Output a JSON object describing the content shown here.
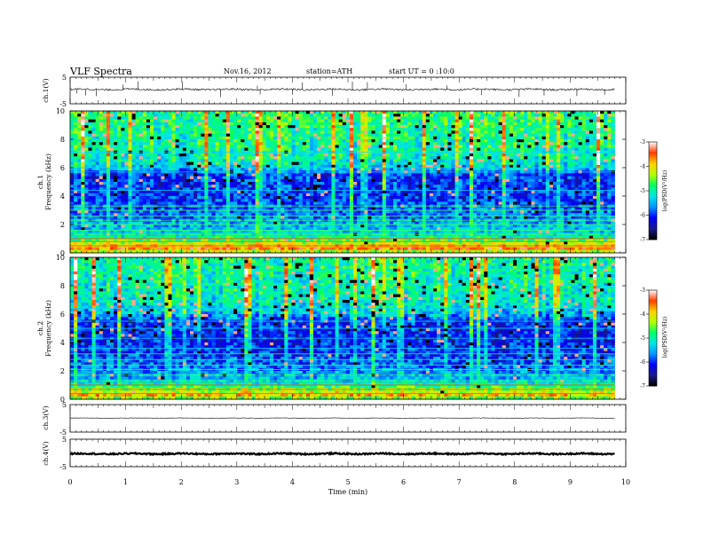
{
  "header": {
    "title": "VLF Spectra",
    "date": "Nov.16, 2012",
    "station": "station=ATH",
    "start": "start UT =  0 :10:0"
  },
  "colors": {
    "waveform": "#000000",
    "axis": "#000000",
    "colormap": [
      "#000000",
      "#1a1a8c",
      "#0000ff",
      "#0096ff",
      "#00e6e6",
      "#00ff64",
      "#b4ff00",
      "#ffd200",
      "#ff3c00",
      "#ffffff"
    ]
  },
  "chart_data": [
    {
      "type": "line",
      "name": "ch1-waveform",
      "ylabel": "ch.1(V)",
      "ylim": [
        -5,
        5
      ],
      "yticks": [
        "5",
        "-5"
      ],
      "xlim": [
        0,
        10
      ],
      "x_end": 9.8,
      "baseline": 0.4,
      "noise": 0.35,
      "spikes": [
        0.12,
        0.28,
        0.47,
        0.95,
        1.22,
        2.02,
        2.71,
        3.37,
        3.42,
        4.0,
        4.18,
        4.72,
        5.08,
        5.35,
        6.05,
        6.78,
        7.4,
        8.08,
        8.53,
        9.12,
        9.62
      ]
    },
    {
      "type": "heatmap",
      "name": "ch1-spectrogram",
      "ylabel": "ch.1",
      "ylabel2": "Frequency (kHz)",
      "ylim": [
        0,
        10
      ],
      "yticks": [
        "0",
        "2",
        "4",
        "6",
        "8",
        "10"
      ],
      "xlim": [
        0,
        10
      ],
      "x_end": 9.8,
      "colorbar": {
        "range": [
          -7,
          -3
        ],
        "ticks": [
          "-3",
          "-4",
          "-5",
          "-6",
          "-7"
        ],
        "label": "log(PSD(V²/Hz)"
      },
      "profile": [
        [
          0,
          -4.6
        ],
        [
          0.3,
          -3.6
        ],
        [
          0.6,
          -4.1
        ],
        [
          1.2,
          -5.2
        ],
        [
          2.5,
          -5.7
        ],
        [
          4,
          -6.0
        ],
        [
          5.5,
          -6.0
        ],
        [
          6,
          -5.3
        ],
        [
          7,
          -5.0
        ],
        [
          8.5,
          -4.9
        ],
        [
          10,
          -4.8
        ]
      ],
      "lines_khz": [
        0.5,
        0.8,
        1.0,
        1.3,
        1.6,
        2.0,
        2.3,
        2.6,
        3.0,
        3.3,
        4.4,
        5.7,
        6.0,
        7.1
      ]
    },
    {
      "type": "heatmap",
      "name": "ch2-spectrogram",
      "ylabel": "ch.2",
      "ylabel2": "Frequency (kHz)",
      "ylim": [
        0,
        10
      ],
      "yticks": [
        "0",
        "2",
        "4",
        "6",
        "8",
        "10"
      ],
      "xlim": [
        0,
        10
      ],
      "x_end": 9.8,
      "colorbar": {
        "range": [
          -7,
          -3
        ],
        "ticks": [
          "-3",
          "-4",
          "-5",
          "-6",
          "-7"
        ],
        "label": "log(PSD(V²/Hz)"
      },
      "profile": [
        [
          0,
          -4.8
        ],
        [
          0.3,
          -3.9
        ],
        [
          0.7,
          -4.5
        ],
        [
          1.3,
          -5.4
        ],
        [
          2.5,
          -5.8
        ],
        [
          4,
          -6.1
        ],
        [
          5.5,
          -6.0
        ],
        [
          6,
          -5.4
        ],
        [
          7,
          -5.1
        ],
        [
          8.5,
          -5.0
        ],
        [
          10,
          -4.9
        ]
      ],
      "lines_khz": [
        0.4,
        0.7,
        1.0,
        1.3,
        1.7,
        2.1,
        2.4,
        2.8,
        3.2,
        3.6,
        4.3,
        5.0,
        5.5,
        6.4
      ]
    },
    {
      "type": "line",
      "name": "ch3-waveform",
      "ylabel": "ch.3(V)",
      "ylim": [
        -5,
        5
      ],
      "yticks": [
        "5",
        "-5"
      ],
      "xlim": [
        0,
        10
      ],
      "x_end": 9.8,
      "baseline": 0.1,
      "noise": 0.08,
      "spikes": []
    },
    {
      "type": "line",
      "name": "ch4-waveform",
      "ylabel": "ch.4(V)",
      "ylim": [
        -5,
        5
      ],
      "yticks": [
        "5",
        "-5"
      ],
      "xlim": [
        0,
        10
      ],
      "x_end": 9.8,
      "baseline": -0.3,
      "noise": 0.25,
      "spikes": []
    }
  ],
  "xaxis": {
    "label": "Time (min)",
    "ticks": [
      "0",
      "1",
      "2",
      "3",
      "4",
      "5",
      "6",
      "7",
      "8",
      "9",
      "10"
    ]
  }
}
